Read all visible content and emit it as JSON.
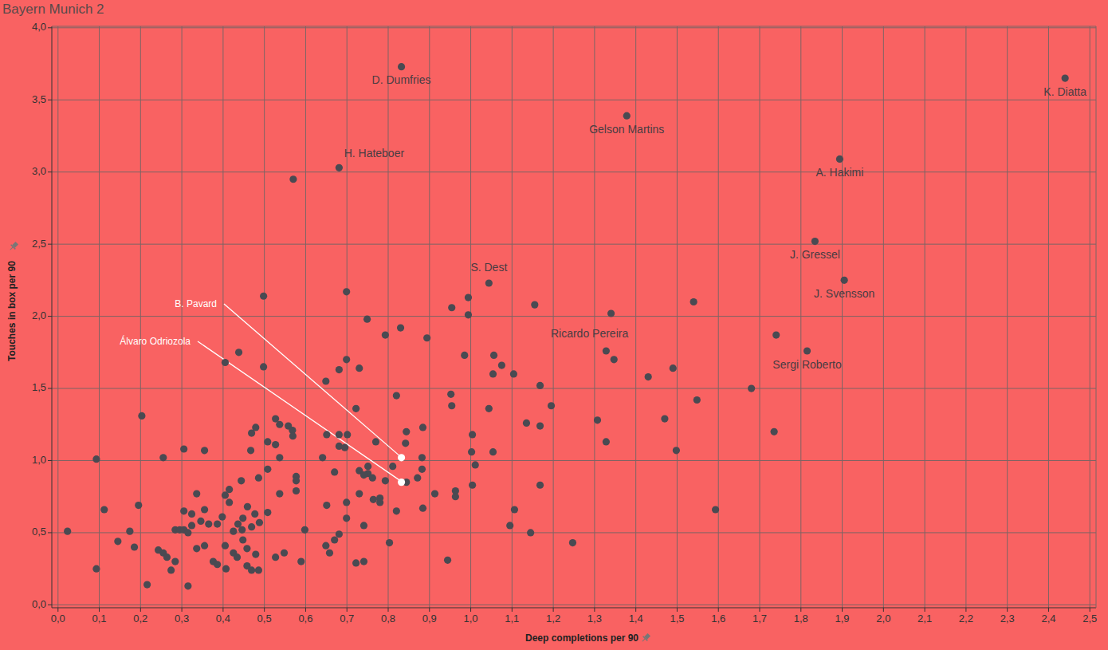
{
  "chart_data": {
    "type": "scatter",
    "title": "Bayern Munich 2",
    "x_label": "Deep completions per 90",
    "y_label": "Touches in box per 90",
    "xlim": [
      -0.015,
      2.515
    ],
    "ylim": [
      -0.02,
      4.01
    ],
    "xticks": [
      {
        "value": 0,
        "label": "0,0"
      },
      {
        "value": 0.1,
        "label": "0,1"
      },
      {
        "value": 0.2,
        "label": "0,2"
      },
      {
        "value": 0.3,
        "label": "0,3"
      },
      {
        "value": 0.4,
        "label": "0,4"
      },
      {
        "value": 0.5,
        "label": "0,5"
      },
      {
        "value": 0.6,
        "label": "0,6"
      },
      {
        "value": 0.7,
        "label": "0,7"
      },
      {
        "value": 0.8,
        "label": "0,8"
      },
      {
        "value": 0.9,
        "label": "0,9"
      },
      {
        "value": 1.0,
        "label": "1,0"
      },
      {
        "value": 1.1,
        "label": "1,1"
      },
      {
        "value": 1.2,
        "label": "1,2"
      },
      {
        "value": 1.3,
        "label": "1,3"
      },
      {
        "value": 1.4,
        "label": "1,4"
      },
      {
        "value": 1.5,
        "label": "1,5"
      },
      {
        "value": 1.6,
        "label": "1,6"
      },
      {
        "value": 1.7,
        "label": "1,7"
      },
      {
        "value": 1.8,
        "label": "1,8"
      },
      {
        "value": 1.9,
        "label": "1,9"
      },
      {
        "value": 2.0,
        "label": "2,0"
      },
      {
        "value": 2.1,
        "label": "2,1"
      },
      {
        "value": 2.2,
        "label": "2,2"
      },
      {
        "value": 2.3,
        "label": "2,3"
      },
      {
        "value": 2.4,
        "label": "2,4"
      },
      {
        "value": 2.5,
        "label": "2,5"
      }
    ],
    "yticks": [
      {
        "value": 0,
        "label": "0,0"
      },
      {
        "value": 0.5,
        "label": "0,5"
      },
      {
        "value": 1.0,
        "label": "1,0"
      },
      {
        "value": 1.5,
        "label": "1,5"
      },
      {
        "value": 2.0,
        "label": "2,0"
      },
      {
        "value": 2.5,
        "label": "2,5"
      },
      {
        "value": 3.0,
        "label": "3,0"
      },
      {
        "value": 3.5,
        "label": "3,5"
      },
      {
        "value": 4.0,
        "label": "4,0"
      }
    ],
    "grid": true,
    "series": [
      {
        "color": "#4a4a52",
        "marker": "circle",
        "x": [
          0.832,
          2.44,
          1.378,
          1.894,
          0.681,
          1.834,
          1.905,
          1.044,
          1.34,
          1.815
        ],
        "values": [
          3.73,
          3.65,
          3.39,
          3.09,
          3.03,
          2.52,
          2.25,
          2.23,
          2.02,
          1.76
        ],
        "labels": [
          "D. Dumfries",
          "K. Diatta",
          "Gelson Martins",
          "A. Hakimi",
          "H. Hateboer",
          "J. Gressel",
          "J. Svensson",
          "S. Dest",
          "Ricardo Pereira",
          "Sergi Roberto"
        ]
      },
      {
        "color": "#4a4a52",
        "marker": "circle",
        "x": [
          1.54,
          1.155,
          0.954,
          0.994,
          0.994,
          0.749,
          0.83,
          0.793,
          0.894,
          0.985,
          1.056,
          1.075,
          1.054,
          1.104,
          1.168,
          1.43,
          1.49,
          1.548,
          1.68,
          1.74,
          1.735,
          1.498,
          1.47,
          1.307,
          1.328,
          1.195,
          1.135,
          1.168,
          1.044,
          0.952,
          0.954,
          0.82,
          1.004,
          1.002,
          1.054,
          1.011,
          0.884,
          0.844,
          0.842,
          0.77,
          0.722,
          0.73,
          0.699,
          0.681,
          0.699,
          0.498,
          0.498,
          0.438,
          0.405,
          0.649,
          0.701,
          0.681,
          0.651,
          0.681,
          0.695,
          0.67,
          0.641,
          0.73,
          0.73,
          0.699,
          0.699,
          0.681,
          0.67,
          0.649,
          0.658,
          0.651,
          0.722,
          0.741,
          0.741,
          0.751,
          0.751,
          0.741,
          0.762,
          0.78,
          0.78,
          0.764,
          0.793,
          0.811,
          0.803,
          0.82,
          0.844,
          0.871,
          0.882,
          0.882,
          0.884,
          0.913,
          0.963,
          0.963,
          0.944,
          1.004,
          1.095,
          1.106,
          1.145,
          1.168,
          1.247,
          1.593,
          1.347,
          1.328,
          0.023,
          0.093,
          0.093,
          0.112,
          0.145,
          0.174,
          0.185,
          0.195,
          0.203,
          0.216,
          0.243,
          0.255,
          0.255,
          0.264,
          0.274,
          0.284,
          0.284,
          0.295,
          0.305,
          0.305,
          0.305,
          0.315,
          0.315,
          0.324,
          0.324,
          0.336,
          0.336,
          0.346,
          0.355,
          0.355,
          0.355,
          0.365,
          0.376,
          0.386,
          0.386,
          0.398,
          0.405,
          0.405,
          0.407,
          0.415,
          0.415,
          0.425,
          0.425,
          0.434,
          0.436,
          0.444,
          0.446,
          0.448,
          0.448,
          0.458,
          0.458,
          0.459,
          0.467,
          0.469,
          0.469,
          0.469,
          0.477,
          0.479,
          0.486,
          0.488,
          0.479,
          0.486,
          0.508,
          0.508,
          0.508,
          0.527,
          0.537,
          0.527,
          0.537,
          0.537,
          0.527,
          0.548,
          0.558,
          0.568,
          0.569,
          0.577,
          0.577,
          0.577,
          0.589,
          0.598,
          0.57
        ],
        "values": [
          2.1,
          2.08,
          2.06,
          2.13,
          2.01,
          1.98,
          1.92,
          1.87,
          1.85,
          1.73,
          1.73,
          1.66,
          1.6,
          1.6,
          1.52,
          1.58,
          1.64,
          1.42,
          1.5,
          1.87,
          1.2,
          1.07,
          1.29,
          1.28,
          1.13,
          1.38,
          1.26,
          1.24,
          1.36,
          1.46,
          1.38,
          1.45,
          1.18,
          1.06,
          1.06,
          0.97,
          1.23,
          1.2,
          1.12,
          1.13,
          1.36,
          1.64,
          1.7,
          1.63,
          2.17,
          2.14,
          1.65,
          1.75,
          1.68,
          1.55,
          1.18,
          1.18,
          1.18,
          1.1,
          1.09,
          0.92,
          1.02,
          0.93,
          0.77,
          0.71,
          0.6,
          0.49,
          0.45,
          0.41,
          0.36,
          0.69,
          0.29,
          0.3,
          0.55,
          0.96,
          0.91,
          0.9,
          0.88,
          0.74,
          0.71,
          0.73,
          0.86,
          0.96,
          0.43,
          0.65,
          0.85,
          0.88,
          0.94,
          1.02,
          0.67,
          0.77,
          0.79,
          0.75,
          0.31,
          0.83,
          0.55,
          0.66,
          0.5,
          0.83,
          0.43,
          0.66,
          1.7,
          1.76,
          0.51,
          1.01,
          0.25,
          0.66,
          0.44,
          0.51,
          0.4,
          0.69,
          1.31,
          0.14,
          0.38,
          1.02,
          0.36,
          0.33,
          0.24,
          0.52,
          0.3,
          0.52,
          1.08,
          0.65,
          0.52,
          0.5,
          0.13,
          0.63,
          0.55,
          0.77,
          0.39,
          0.58,
          1.07,
          0.66,
          0.41,
          0.56,
          0.3,
          0.28,
          0.56,
          0.61,
          0.76,
          0.41,
          0.25,
          0.8,
          0.71,
          0.51,
          0.36,
          0.33,
          0.56,
          0.86,
          0.52,
          0.6,
          0.45,
          0.39,
          0.27,
          0.68,
          1.07,
          1.19,
          0.54,
          0.24,
          0.63,
          0.35,
          0.24,
          0.57,
          1.23,
          0.88,
          1.13,
          0.94,
          0.64,
          1.29,
          1.25,
          1.11,
          1.02,
          0.77,
          0.33,
          0.36,
          1.24,
          1.21,
          1.17,
          0.89,
          0.86,
          0.79,
          0.3,
          0.52,
          2.95
        ]
      },
      {
        "color": "#ffffff",
        "marker": "circle",
        "x": [
          0.832,
          0.832
        ],
        "values": [
          1.02,
          0.85
        ],
        "labels": [
          "B. Pavard",
          "Álvaro Odriozola"
        ]
      }
    ]
  }
}
